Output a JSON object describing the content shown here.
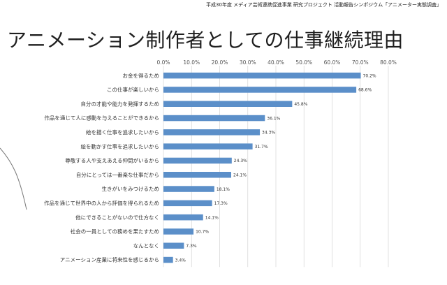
{
  "header_note": "平成30年度 メディア芸術連携促進事業 研究プロジェクト 活動報告シンポジウム「アニメーター実態調査」",
  "slide_title": "アニメーション制作者としての仕事継続理由",
  "colors": {
    "bar": "#5b8fc9",
    "grid": "#d9d9d9",
    "text": "#333333"
  },
  "chart_data": {
    "type": "bar",
    "orientation": "horizontal",
    "categories": [
      "お金を得るため",
      "この仕事が楽しいから",
      "自分の才能や能力を発揮するため",
      "作品を通じて人に感動を与えることができるから",
      "絵を描く仕事を追求したいから",
      "絵を動かす仕事を追求したいから",
      "尊敬する人や支えあえる仲間がいるから",
      "自分にとっては一番楽な仕事だから",
      "生きがいをみつけるため",
      "作品を通じて世界中の人から評価を得られるため",
      "他にできることがないので仕方なく",
      "社会の一員としての務めを果たすため",
      "なんとなく",
      "アニメーション産業に将来性を感じるから"
    ],
    "values": [
      70.2,
      68.6,
      45.8,
      36.1,
      34.3,
      31.7,
      24.3,
      24.1,
      18.1,
      17.3,
      14.1,
      10.7,
      7.3,
      3.4
    ],
    "value_labels": [
      "70.2%",
      "68.6%",
      "45.8%",
      "36.1%",
      "34.3%",
      "31.7%",
      "24.3%",
      "24.1%",
      "18.1%",
      "17.3%",
      "14.1%",
      "10.7%",
      "7.3%",
      "3.4%"
    ],
    "xlim": [
      0,
      80
    ],
    "x_ticks": [
      0,
      10,
      20,
      30,
      40,
      50,
      60,
      70,
      80
    ],
    "x_tick_labels": [
      "0.0%",
      "10.0%",
      "20.0%",
      "30.0%",
      "40.0%",
      "50.0%",
      "60.0%",
      "70.0%",
      "80.0%"
    ],
    "tick_position": "top",
    "grid": true,
    "legend": "none"
  }
}
